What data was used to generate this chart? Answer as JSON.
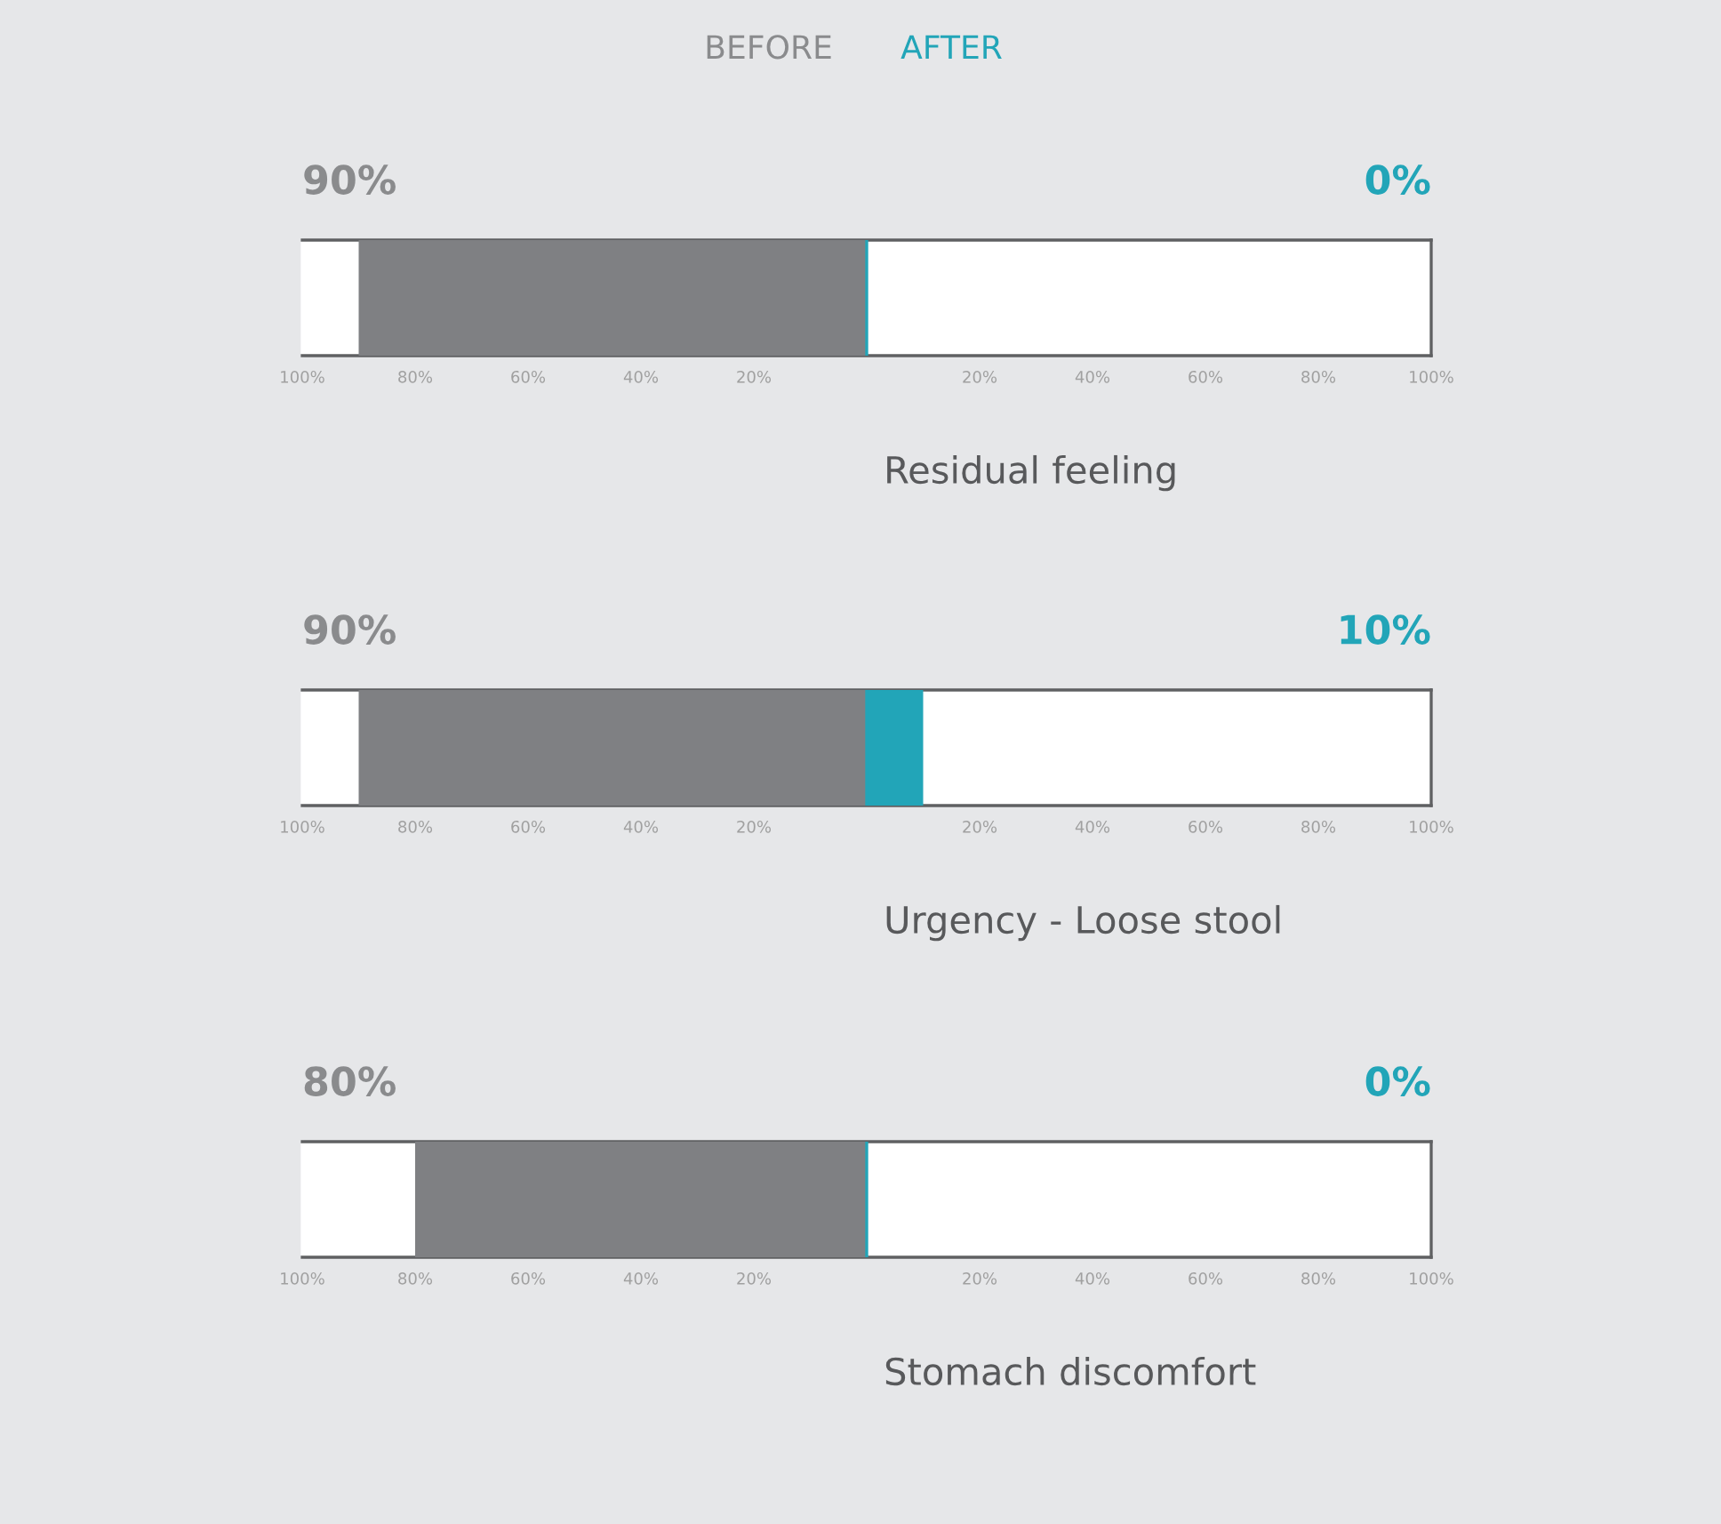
{
  "chart_data": [
    {
      "type": "bar",
      "orientation": "horizontal",
      "categories": [
        null
      ],
      "annotations": [
        "BEFORE",
        "AFTER",
        "90%",
        "0%"
      ],
      "xlabel": "Residual feeling",
      "stacked": true,
      "ref_lines": [
        {
          "axis": "x",
          "value": 0,
          "color": "#22a5b8"
        }
      ],
      "xlim": [
        -100,
        100
      ],
      "xticks": [
        {
          "value": -100,
          "label": "100%"
        },
        {
          "value": -80,
          "label": "80%"
        },
        {
          "value": -60,
          "label": "60%"
        },
        {
          "value": -40,
          "label": "40%"
        },
        {
          "value": -20,
          "label": "20%"
        },
        {
          "value": 20,
          "label": "20%"
        },
        {
          "value": 40,
          "label": "40%"
        },
        {
          "value": 60,
          "label": "60%"
        },
        {
          "value": 80,
          "label": "80%"
        },
        {
          "value": 100,
          "label": "100%"
        }
      ],
      "tick_labels": "x",
      "grid": false,
      "legend": false,
      "series": [
        {
          "color": "#7f8083",
          "values": [
            -90
          ]
        },
        {
          "color": "#22a5b8",
          "values": [
            0
          ]
        }
      ]
    },
    {
      "type": "bar",
      "orientation": "horizontal",
      "categories": [
        null
      ],
      "annotations": [
        "90%",
        "10%"
      ],
      "xlabel": "Urgency - Loose stool",
      "stacked": true,
      "ref_lines": [
        {
          "axis": "x",
          "value": 0,
          "color": "#22a5b8"
        }
      ],
      "xlim": [
        -100,
        100
      ],
      "xticks": [
        {
          "value": -100,
          "label": "100%"
        },
        {
          "value": -80,
          "label": "80%"
        },
        {
          "value": -60,
          "label": "60%"
        },
        {
          "value": -40,
          "label": "40%"
        },
        {
          "value": -20,
          "label": "20%"
        },
        {
          "value": 20,
          "label": "20%"
        },
        {
          "value": 40,
          "label": "40%"
        },
        {
          "value": 60,
          "label": "60%"
        },
        {
          "value": 80,
          "label": "80%"
        },
        {
          "value": 100,
          "label": "100%"
        }
      ],
      "tick_labels": "x",
      "grid": false,
      "legend": false,
      "series": [
        {
          "color": "#7f8083",
          "values": [
            -90
          ]
        },
        {
          "color": "#22a5b8",
          "values": [
            10
          ]
        }
      ]
    },
    {
      "type": "bar",
      "orientation": "horizontal",
      "categories": [
        null
      ],
      "annotations": [
        "80%",
        "0%"
      ],
      "xlabel": "Stomach discomfort",
      "stacked": true,
      "ref_lines": [
        {
          "axis": "x",
          "value": 0,
          "color": "#22a5b8"
        }
      ],
      "xlim": [
        -100,
        100
      ],
      "xticks": [
        {
          "value": -100,
          "label": "100%"
        },
        {
          "value": -80,
          "label": "80%"
        },
        {
          "value": -60,
          "label": "60%"
        },
        {
          "value": -40,
          "label": "40%"
        },
        {
          "value": -20,
          "label": "20%"
        },
        {
          "value": 20,
          "label": "20%"
        },
        {
          "value": 40,
          "label": "40%"
        },
        {
          "value": 60,
          "label": "60%"
        },
        {
          "value": 80,
          "label": "80%"
        },
        {
          "value": 100,
          "label": "100%"
        }
      ],
      "tick_labels": "x",
      "grid": false,
      "legend": false,
      "series": [
        {
          "color": "#7f8083",
          "values": [
            -80
          ]
        },
        {
          "color": "#22a5b8",
          "values": [
            0
          ]
        }
      ]
    }
  ]
}
